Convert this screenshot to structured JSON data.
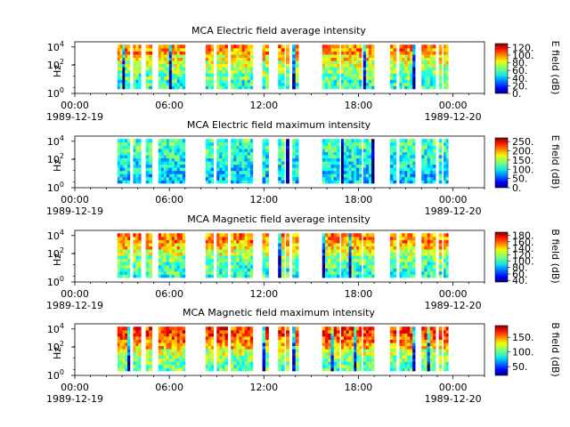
{
  "chart_data": [
    {
      "type": "heatmap",
      "title": "MCA  Electric field average intensity",
      "ylabel": "Hz",
      "y_ticks": [
        "10^0",
        "10^2",
        "10^4"
      ],
      "y_scale": "log",
      "x_ticks": [
        {
          "time": "00:00",
          "date": "1989-12-19"
        },
        {
          "time": "06:00",
          "date": ""
        },
        {
          "time": "12:00",
          "date": ""
        },
        {
          "time": "18:00",
          "date": ""
        },
        {
          "time": "00:00",
          "date": "1989-12-20"
        }
      ],
      "colorbar": {
        "label": "E field (dB)",
        "ticks": [
          "0.",
          "20.",
          "40.",
          "60.",
          "80.",
          "100.",
          "120."
        ],
        "range": [
          0,
          130
        ]
      },
      "data_intervals_hours": [
        [
          2.7,
          3.5
        ],
        [
          3.7,
          4.2
        ],
        [
          4.5,
          4.9
        ],
        [
          5.3,
          7.0
        ],
        [
          8.3,
          8.8
        ],
        [
          9.0,
          9.7
        ],
        [
          9.9,
          11.3
        ],
        [
          11.9,
          12.3
        ],
        [
          12.9,
          13.3
        ],
        [
          13.4,
          13.6
        ],
        [
          13.8,
          14.2
        ],
        [
          15.7,
          16.8
        ],
        [
          16.9,
          18.2
        ],
        [
          18.3,
          19.0
        ],
        [
          20.0,
          20.4
        ],
        [
          20.6,
          21.6
        ],
        [
          22.0,
          22.9
        ],
        [
          23.1,
          23.3
        ],
        [
          23.4,
          23.7
        ]
      ],
      "colormap": "jet",
      "level_profile_db": [
        95,
        85,
        75,
        68,
        62,
        55
      ]
    },
    {
      "type": "heatmap",
      "title": "MCA  Electric field maximum intensity",
      "ylabel": "Hz",
      "y_ticks": [
        "10^0",
        "10^2",
        "10^4"
      ],
      "y_scale": "log",
      "x_ticks": [
        {
          "time": "00:00",
          "date": "1989-12-19"
        },
        {
          "time": "06:00",
          "date": ""
        },
        {
          "time": "12:00",
          "date": ""
        },
        {
          "time": "18:00",
          "date": ""
        },
        {
          "time": "00:00",
          "date": "1989-12-20"
        }
      ],
      "colorbar": {
        "label": "E field (dB)",
        "ticks": [
          "0.",
          "50.",
          "100.",
          "150.",
          "200.",
          "250."
        ],
        "range": [
          0,
          270
        ]
      },
      "data_intervals_hours": [
        [
          2.7,
          3.5
        ],
        [
          3.7,
          4.2
        ],
        [
          4.5,
          4.9
        ],
        [
          5.3,
          7.0
        ],
        [
          8.3,
          8.8
        ],
        [
          9.0,
          9.7
        ],
        [
          9.9,
          11.3
        ],
        [
          11.9,
          12.3
        ],
        [
          12.9,
          13.3
        ],
        [
          13.4,
          13.6
        ],
        [
          13.8,
          14.2
        ],
        [
          15.7,
          16.8
        ],
        [
          16.9,
          18.2
        ],
        [
          18.3,
          19.0
        ],
        [
          20.0,
          20.4
        ],
        [
          20.6,
          21.6
        ],
        [
          22.0,
          22.9
        ],
        [
          23.1,
          23.3
        ],
        [
          23.4,
          23.7
        ]
      ],
      "colormap": "jet",
      "level_profile_db": [
        120,
        112,
        105,
        100,
        96,
        92
      ]
    },
    {
      "type": "heatmap",
      "title": "MCA  Magnetic field average intensity",
      "ylabel": "Hz",
      "y_ticks": [
        "10^0",
        "10^2",
        "10^4"
      ],
      "y_scale": "log",
      "x_ticks": [
        {
          "time": "00:00",
          "date": "1989-12-19"
        },
        {
          "time": "06:00",
          "date": ""
        },
        {
          "time": "12:00",
          "date": ""
        },
        {
          "time": "18:00",
          "date": ""
        },
        {
          "time": "00:00",
          "date": "1989-12-20"
        }
      ],
      "colorbar": {
        "label": "B field (dB)",
        "ticks": [
          "40.",
          "60.",
          "80.",
          "100.",
          "120.",
          "140.",
          "160.",
          "180."
        ],
        "range": [
          35,
          190
        ]
      },
      "data_intervals_hours": [
        [
          2.7,
          3.5
        ],
        [
          3.7,
          4.2
        ],
        [
          4.5,
          4.9
        ],
        [
          5.3,
          7.0
        ],
        [
          8.3,
          8.8
        ],
        [
          9.0,
          9.7
        ],
        [
          9.9,
          11.3
        ],
        [
          11.9,
          12.3
        ],
        [
          12.9,
          13.3
        ],
        [
          13.4,
          13.6
        ],
        [
          13.8,
          14.2
        ],
        [
          15.7,
          16.8
        ],
        [
          16.9,
          18.2
        ],
        [
          18.3,
          19.0
        ],
        [
          20.0,
          20.4
        ],
        [
          20.6,
          21.6
        ],
        [
          22.0,
          22.9
        ],
        [
          23.1,
          23.3
        ],
        [
          23.4,
          23.7
        ]
      ],
      "colormap": "jet",
      "level_profile_db": [
        150,
        140,
        125,
        112,
        105,
        100
      ]
    },
    {
      "type": "heatmap",
      "title": "MCA  Magnetic field maximum intensity",
      "ylabel": "Hz",
      "y_ticks": [
        "10^0",
        "10^2",
        "10^4"
      ],
      "y_scale": "log",
      "x_ticks": [
        {
          "time": "00:00",
          "date": "1989-12-19"
        },
        {
          "time": "06:00",
          "date": ""
        },
        {
          "time": "12:00",
          "date": ""
        },
        {
          "time": "18:00",
          "date": ""
        },
        {
          "time": "00:00",
          "date": "1989-12-20"
        }
      ],
      "colorbar": {
        "label": "B field (dB)",
        "ticks": [
          "50.",
          "100.",
          "150."
        ],
        "range": [
          20,
          190
        ]
      },
      "data_intervals_hours": [
        [
          2.7,
          3.5
        ],
        [
          3.7,
          4.2
        ],
        [
          4.5,
          4.9
        ],
        [
          5.3,
          7.0
        ],
        [
          8.3,
          8.8
        ],
        [
          9.0,
          9.7
        ],
        [
          9.9,
          11.3
        ],
        [
          11.9,
          12.3
        ],
        [
          12.9,
          13.3
        ],
        [
          13.4,
          13.6
        ],
        [
          13.8,
          14.2
        ],
        [
          15.7,
          16.8
        ],
        [
          16.9,
          18.2
        ],
        [
          18.3,
          19.0
        ],
        [
          20.0,
          20.4
        ],
        [
          20.6,
          21.6
        ],
        [
          22.0,
          22.9
        ],
        [
          23.1,
          23.3
        ],
        [
          23.4,
          23.7
        ]
      ],
      "colormap": "jet",
      "level_profile_db": [
        160,
        150,
        135,
        118,
        108,
        100
      ]
    }
  ]
}
